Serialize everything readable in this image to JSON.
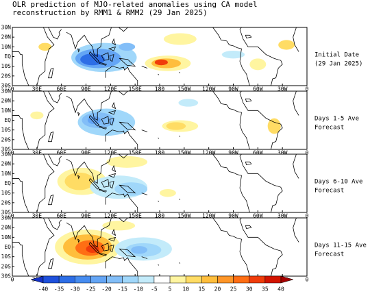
{
  "title_lines": [
    "OLR prediction of MJO-related anomalies using CA model",
    "reconstruction by RMM1 & RMM2 (29 Jan 2025)"
  ],
  "lat_labels": [
    "30N",
    "20N",
    "10N",
    "EQ",
    "10S",
    "20S",
    "30S"
  ],
  "lon_labels": [
    "0",
    "30E",
    "60E",
    "90E",
    "120E",
    "150E",
    "180",
    "150W",
    "120W",
    "90W",
    "60W",
    "30W",
    "0"
  ],
  "panels": [
    {
      "label_lines": [
        "Initial Date",
        "(29 Jan 2025)"
      ]
    },
    {
      "label_lines": [
        "Days 1-5 Ave",
        "Forecast"
      ]
    },
    {
      "label_lines": [
        "Days 6-10 Ave",
        "Forecast"
      ]
    },
    {
      "label_lines": [
        "Days 11-15 Ave",
        "Forecast"
      ]
    }
  ],
  "colorbar": {
    "ticks": [
      -40,
      -35,
      -30,
      -25,
      -20,
      -15,
      -10,
      -5,
      5,
      10,
      15,
      20,
      25,
      30,
      35,
      40
    ],
    "colors": [
      "#1432c8",
      "#1e50dc",
      "#2d6ee6",
      "#468cf0",
      "#64a5f5",
      "#82bef8",
      "#a0d7fa",
      "#c3ebfa",
      "#ffffff",
      "#fff5a0",
      "#ffdc64",
      "#ffbe3c",
      "#ff9628",
      "#ff6e14",
      "#f03c0a",
      "#d21400",
      "#a50000"
    ]
  }
}
